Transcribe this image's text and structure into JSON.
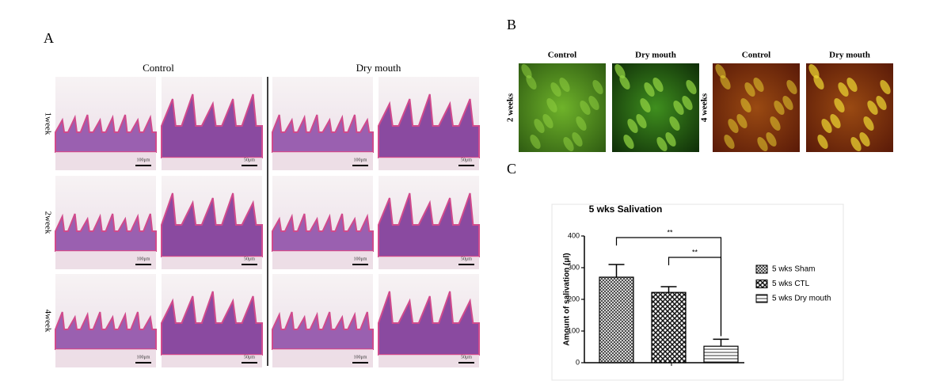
{
  "panel_a": {
    "label": "A",
    "columns": [
      "Control",
      "Dry mouth"
    ],
    "rows": [
      "1week",
      "2week",
      "4week"
    ],
    "scale_labels": [
      "100μm",
      "50μm"
    ]
  },
  "panel_b": {
    "label": "B",
    "columns": [
      "Control",
      "Dry mouth",
      "Control",
      "Dry mouth"
    ],
    "rows": [
      "2 weeks",
      "4 weeks"
    ]
  },
  "chart_data": {
    "type": "bar",
    "panel_label": "C",
    "title": "5 wks Salivation",
    "y_label": "Amount of salivation (μl)",
    "categories": [
      "5 wks Sham",
      "5 wks CTL",
      "5 wks Dry mouth"
    ],
    "values": [
      270,
      222,
      52
    ],
    "errors": [
      40,
      18,
      22
    ],
    "ylim": [
      0,
      400
    ],
    "yticks": [
      0,
      100,
      200,
      300,
      400
    ],
    "significance": [
      "**",
      "**"
    ],
    "legend": "right"
  }
}
